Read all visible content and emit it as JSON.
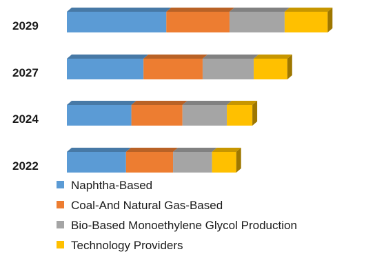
{
  "chart_data": {
    "type": "bar",
    "orientation": "horizontal",
    "stacked": true,
    "three_d": true,
    "title": "",
    "xlabel": "",
    "ylabel": "",
    "categories": [
      "2029",
      "2027",
      "2024",
      "2022"
    ],
    "series": [
      {
        "name": "Naphtha-Based",
        "color": "#5b9bd5",
        "values": [
          37,
          28.5,
          24,
          22
        ]
      },
      {
        "name": "Coal-And Natural Gas-Based",
        "color": "#ed7d31",
        "values": [
          23.5,
          22,
          19,
          17.5
        ]
      },
      {
        "name": "Bio-Based Monoethylene Glycol Production",
        "color": "#a5a5a5",
        "values": [
          20.5,
          19,
          16.5,
          14.5
        ]
      },
      {
        "name": "Technology Providers",
        "color": "#ffc000",
        "values": [
          16,
          12.5,
          9.5,
          9
        ]
      }
    ],
    "xlim": [
      0,
      100
    ],
    "axes_visible": false,
    "grid": false,
    "legend_position": "bottom-left"
  }
}
